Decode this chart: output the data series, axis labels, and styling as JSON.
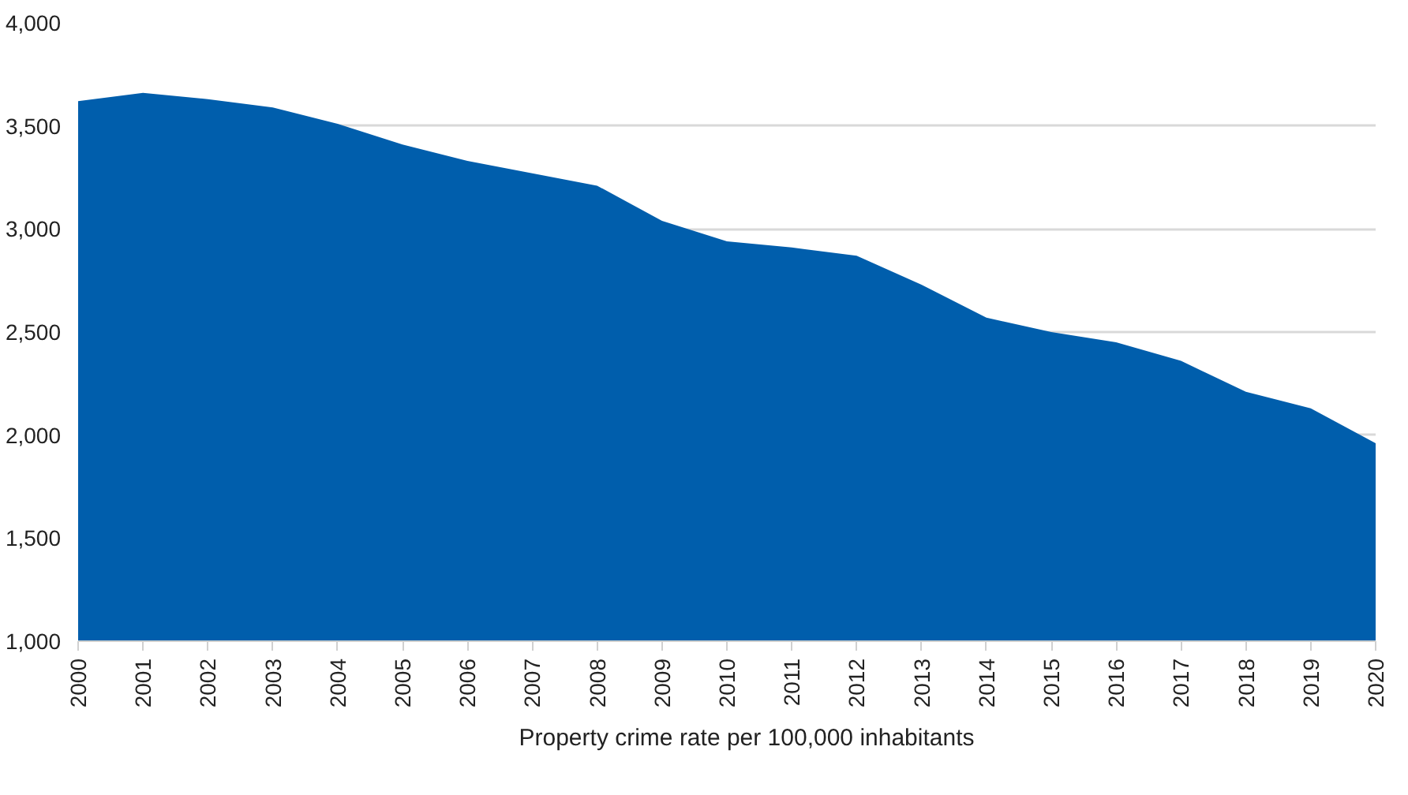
{
  "chart_data": {
    "type": "area",
    "x": [
      2000,
      2001,
      2002,
      2003,
      2004,
      2005,
      2006,
      2007,
      2008,
      2009,
      2010,
      2011,
      2012,
      2013,
      2014,
      2015,
      2016,
      2017,
      2018,
      2019,
      2020
    ],
    "series": [
      {
        "name": "Property crime rate per 100,000 inhabitants",
        "color": "#005eac",
        "values": [
          3620,
          3660,
          3630,
          3590,
          3510,
          3410,
          3330,
          3270,
          3210,
          3040,
          2940,
          2910,
          2870,
          2730,
          2570,
          2500,
          2450,
          2360,
          2210,
          2130,
          1960
        ]
      }
    ],
    "xlim": [
      2000,
      2020
    ],
    "xticks": [
      2000,
      2001,
      2002,
      2003,
      2004,
      2005,
      2006,
      2007,
      2008,
      2009,
      2010,
      2011,
      2012,
      2013,
      2014,
      2015,
      2016,
      2017,
      2018,
      2019,
      2020
    ],
    "ylim": [
      1000,
      4000
    ],
    "yticks": [
      {
        "value": 1000,
        "label": "1,000"
      },
      {
        "value": 1500,
        "label": "1,500"
      },
      {
        "value": 2000,
        "label": "2,000"
      },
      {
        "value": 2500,
        "label": "2,500"
      },
      {
        "value": 3000,
        "label": "3,000"
      },
      {
        "value": 3500,
        "label": "3,500"
      },
      {
        "value": 4000,
        "label": "4,000"
      }
    ],
    "grid": "y",
    "legend": "bottom"
  }
}
